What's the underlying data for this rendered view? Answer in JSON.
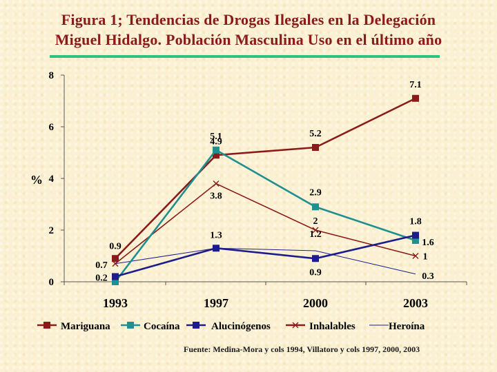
{
  "title_line1": "Figura 1; Tendencias de Drogas Ilegales en  la Delegación",
  "title_line2": "Miguel Hidalgo. Población Masculina Uso en el último año",
  "source": "Fuente: Medina-Mora y cols 1994, Villatoro y cols 1997, 2000, 2003",
  "chart_data": {
    "type": "line",
    "categories": [
      "1993",
      "1997",
      "2000",
      "2003"
    ],
    "ylabel": "%",
    "ylim": [
      0,
      8
    ],
    "yticks": [
      "0",
      "2",
      "4",
      "6",
      "8"
    ],
    "legend_position": "bottom",
    "series": [
      {
        "name": "Mariguana",
        "values": [
          0.9,
          4.9,
          5.2,
          7.1
        ],
        "labels": [
          "0.9",
          "4.9",
          "5.2",
          "7.1"
        ],
        "color": "#8b1a1a",
        "marker": "square"
      },
      {
        "name": "Cocaína",
        "values": [
          0,
          5.1,
          2.9,
          1.6
        ],
        "labels": [
          "",
          "5.1",
          "2.9",
          "1.6"
        ],
        "color": "#1f8f8f",
        "marker": "square"
      },
      {
        "name": "Alucinógenos",
        "values": [
          0.2,
          1.3,
          0.9,
          1.8
        ],
        "labels": [
          "0.2",
          "1.3",
          "0.9",
          "1.8"
        ],
        "color": "#1c1c8c",
        "marker": "square"
      },
      {
        "name": "Inhalables",
        "values": [
          0.7,
          3.8,
          2,
          1
        ],
        "labels": [
          "0.7",
          "3.8",
          "2",
          "1"
        ],
        "color": "#8b1a1a",
        "marker": "x"
      },
      {
        "name": "Heroína",
        "values": [
          0.7,
          1.3,
          1.2,
          0.3
        ],
        "labels": [
          "",
          "",
          "1.2",
          "0.3"
        ],
        "color": "#1c1c8c",
        "marker": "none"
      }
    ]
  }
}
